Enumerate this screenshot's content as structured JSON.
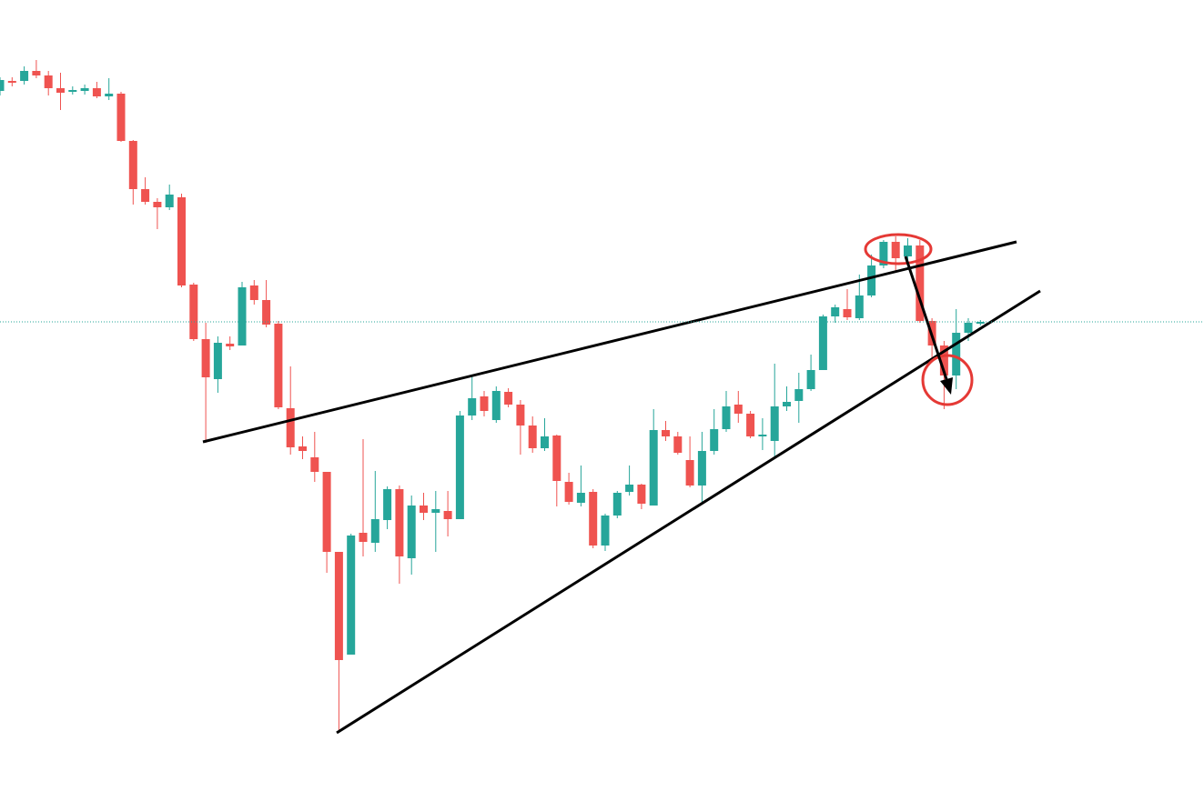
{
  "chart_data": {
    "type": "candlestick",
    "up_color": "#26a69a",
    "down_color": "#ef5350",
    "ylim": [
      19,
      900
    ],
    "last_price_line": true,
    "open": [
      800,
      811,
      811,
      822,
      817,
      803,
      799,
      800,
      803,
      794,
      797,
      745,
      692,
      678,
      672,
      683,
      587,
      527,
      483,
      522,
      520,
      586,
      570,
      544,
      451,
      409,
      397,
      381,
      293,
      180,
      314,
      303,
      328,
      362,
      286,
      344,
      336,
      338,
      329,
      443,
      464,
      438,
      469,
      455,
      432,
      407,
      421,
      370,
      347,
      359,
      300,
      333,
      359,
      367,
      344,
      427,
      420,
      394,
      366,
      404,
      428,
      455,
      445,
      420,
      415,
      453,
      459,
      472,
      493,
      552,
      560,
      550,
      575,
      608,
      634,
      618,
      630,
      547,
      520,
      487,
      534,
      544
    ],
    "high": [
      815,
      815,
      827,
      834,
      822,
      820,
      805,
      807,
      810,
      814,
      799,
      746,
      705,
      682,
      697,
      687,
      589,
      545,
      530,
      530,
      590,
      592,
      592,
      547,
      497,
      420,
      425,
      381,
      293,
      313,
      417,
      382,
      365,
      366,
      355,
      358,
      360,
      360,
      448,
      488,
      470,
      475,
      473,
      460,
      442,
      440,
      422,
      380,
      388,
      362,
      335,
      360,
      388,
      368,
      450,
      437,
      425,
      420,
      425,
      450,
      470,
      470,
      448,
      440,
      500,
      475,
      490,
      510,
      554,
      565,
      582,
      598,
      620,
      636,
      640,
      638,
      636,
      550,
      525,
      560,
      550,
      548
    ],
    "low": [
      795,
      805,
      807,
      814,
      795,
      779,
      796,
      796,
      792,
      790,
      744,
      675,
      675,
      648,
      669,
      584,
      525,
      413,
      468,
      515,
      520,
      565,
      540,
      450,
      400,
      395,
      370,
      270,
      95,
      180,
      288,
      293,
      318,
      258,
      268,
      328,
      293,
      310,
      329,
      438,
      442,
      435,
      452,
      400,
      402,
      404,
      343,
      345,
      343,
      297,
      294,
      330,
      355,
      340,
      344,
      415,
      400,
      364,
      347,
      400,
      425,
      435,
      418,
      405,
      395,
      448,
      435,
      470,
      493,
      545,
      548,
      548,
      573,
      605,
      600,
      612,
      545,
      505,
      450,
      472,
      525,
      542
    ],
    "close": [
      812,
      809,
      822,
      817,
      803,
      798,
      801,
      803,
      794,
      797,
      745,
      692,
      678,
      672,
      686,
      586,
      527,
      485,
      523,
      519,
      584,
      570,
      543,
      452,
      408,
      404,
      381,
      293,
      174,
      311,
      304,
      329,
      362,
      288,
      344,
      336,
      340,
      329,
      443,
      462,
      448,
      470,
      455,
      432,
      407,
      420,
      371,
      348,
      358,
      300,
      333,
      358,
      367,
      346,
      427,
      420,
      402,
      366,
      404,
      428,
      453,
      445,
      420,
      422,
      453,
      458,
      472,
      493,
      552,
      562,
      551,
      575,
      608,
      634,
      616,
      630,
      547,
      520,
      487,
      534,
      545,
      546
    ]
  }
}
